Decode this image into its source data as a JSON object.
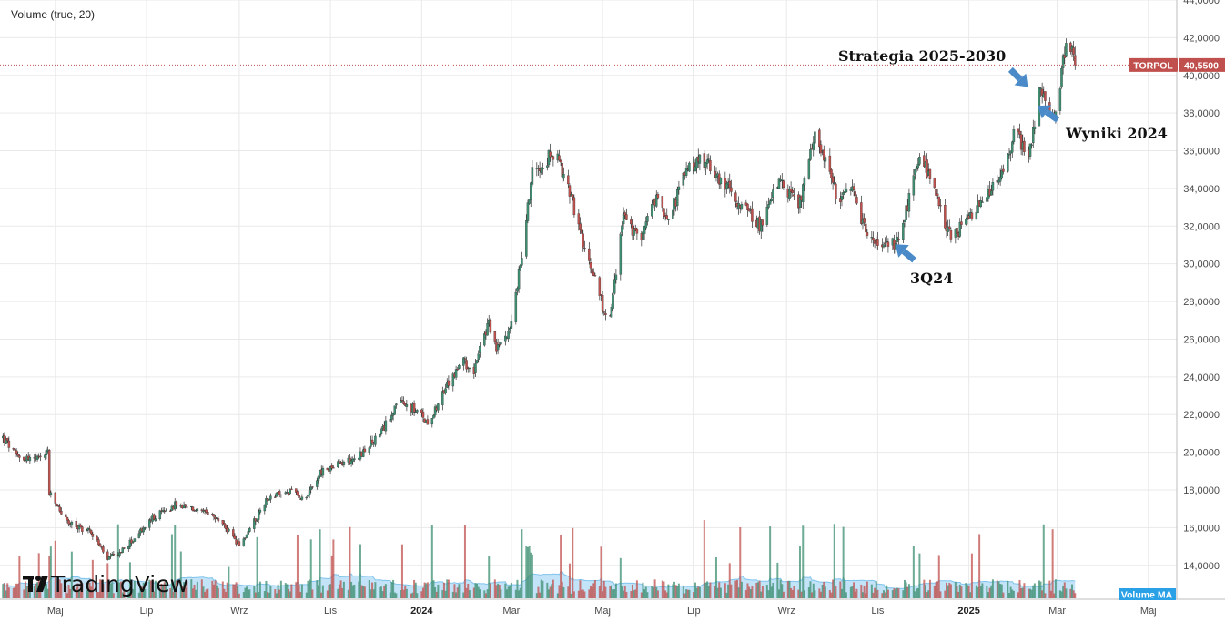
{
  "indicator": {
    "label": "Volume (true, 20)"
  },
  "logo": {
    "text": "TradingView"
  },
  "volume_badge": {
    "label": "Volume MA"
  },
  "colors": {
    "up": "#3e8f71",
    "down": "#c0504d",
    "wick": "#2b2b2b",
    "grid": "#e9e9e9",
    "price_line": "#c0504d",
    "volume_ma_fill": "#a9d8f5",
    "volume_ma_line": "#7fc3ec",
    "volume_badge": "#2aa0e6",
    "arrow": "#4a8ac9"
  },
  "chart_data": {
    "type": "candlestick",
    "symbol": "TORPOL",
    "last_price": 40.55,
    "last_price_label": "40,5500",
    "y_ticks": [
      "44,0000",
      "42,0000",
      "40,0000",
      "38,0000",
      "36,0000",
      "34,0000",
      "32,0000",
      "30,0000",
      "28,0000",
      "26,0000",
      "24,0000",
      "22,0000",
      "20,0000",
      "18,0000",
      "16,0000",
      "14,0000"
    ],
    "y_tick_values": [
      44,
      42,
      40,
      38,
      36,
      34,
      32,
      30,
      28,
      26,
      24,
      22,
      20,
      18,
      16,
      14
    ],
    "y_range": [
      12.2,
      44
    ],
    "x_range": [
      "2023-03-25",
      "2025-05-20"
    ],
    "x_ticks": [
      {
        "label": "Maj",
        "date": "2023-05-01",
        "bold": false
      },
      {
        "label": "Lip",
        "date": "2023-07-01",
        "bold": false
      },
      {
        "label": "Wrz",
        "date": "2023-09-01",
        "bold": false
      },
      {
        "label": "Lis",
        "date": "2023-11-01",
        "bold": false
      },
      {
        "label": "2024",
        "date": "2024-01-01",
        "bold": true
      },
      {
        "label": "Mar",
        "date": "2024-03-01",
        "bold": false
      },
      {
        "label": "Maj",
        "date": "2024-05-01",
        "bold": false
      },
      {
        "label": "Lip",
        "date": "2024-07-01",
        "bold": false
      },
      {
        "label": "Wrz",
        "date": "2024-09-01",
        "bold": false
      },
      {
        "label": "Lis",
        "date": "2024-11-01",
        "bold": false
      },
      {
        "label": "2025",
        "date": "2025-01-01",
        "bold": true
      },
      {
        "label": "Mar",
        "date": "2025-03-01",
        "bold": false
      },
      {
        "label": "Maj",
        "date": "2025-05-01",
        "bold": false
      }
    ],
    "price_path": [
      [
        "2023-03-25",
        21.0
      ],
      [
        "2023-04-05",
        19.8
      ],
      [
        "2023-04-20",
        19.6
      ],
      [
        "2023-04-26",
        20.1
      ],
      [
        "2023-04-27",
        17.8
      ],
      [
        "2023-05-10",
        16.2
      ],
      [
        "2023-05-25",
        15.8
      ],
      [
        "2023-06-05",
        14.3
      ],
      [
        "2023-06-15",
        14.8
      ],
      [
        "2023-06-25",
        15.6
      ],
      [
        "2023-07-05",
        16.5
      ],
      [
        "2023-07-20",
        17.2
      ],
      [
        "2023-08-05",
        16.9
      ],
      [
        "2023-08-20",
        16.3
      ],
      [
        "2023-09-01",
        15.0
      ],
      [
        "2023-09-10",
        16.2
      ],
      [
        "2023-09-20",
        17.6
      ],
      [
        "2023-10-05",
        17.9
      ],
      [
        "2023-10-15",
        17.6
      ],
      [
        "2023-10-25",
        18.9
      ],
      [
        "2023-11-05",
        19.3
      ],
      [
        "2023-11-20",
        19.8
      ],
      [
        "2023-12-05",
        21.0
      ],
      [
        "2023-12-15",
        22.6
      ],
      [
        "2023-12-25",
        22.4
      ],
      [
        "2024-01-05",
        21.6
      ],
      [
        "2024-01-20",
        23.8
      ],
      [
        "2024-01-28",
        24.8
      ],
      [
        "2024-02-05",
        24.4
      ],
      [
        "2024-02-15",
        26.9
      ],
      [
        "2024-02-20",
        25.4
      ],
      [
        "2024-03-01",
        26.8
      ],
      [
        "2024-03-08",
        30.5
      ],
      [
        "2024-03-15",
        35.0
      ],
      [
        "2024-03-30",
        35.9
      ],
      [
        "2024-04-10",
        33.6
      ],
      [
        "2024-04-20",
        30.3
      ],
      [
        "2024-04-25",
        29.6
      ],
      [
        "2024-05-05",
        26.6
      ],
      [
        "2024-05-15",
        32.6
      ],
      [
        "2024-05-25",
        31.2
      ],
      [
        "2024-06-05",
        33.4
      ],
      [
        "2024-06-15",
        32.5
      ],
      [
        "2024-06-25",
        34.8
      ],
      [
        "2024-07-05",
        35.6
      ],
      [
        "2024-07-15",
        34.9
      ],
      [
        "2024-08-01",
        33.2
      ],
      [
        "2024-08-15",
        32.0
      ],
      [
        "2024-08-25",
        34.5
      ],
      [
        "2024-09-10",
        33.2
      ],
      [
        "2024-09-20",
        36.8
      ],
      [
        "2024-09-28",
        35.5
      ],
      [
        "2024-10-05",
        33.3
      ],
      [
        "2024-10-15",
        33.8
      ],
      [
        "2024-10-25",
        31.5
      ],
      [
        "2024-11-05",
        30.8
      ],
      [
        "2024-11-15",
        31.2
      ],
      [
        "2024-11-22",
        33.5
      ],
      [
        "2024-11-30",
        35.8
      ],
      [
        "2024-12-10",
        33.5
      ],
      [
        "2024-12-20",
        31.3
      ],
      [
        "2025-01-05",
        32.8
      ],
      [
        "2025-01-15",
        33.8
      ],
      [
        "2025-01-25",
        35.0
      ],
      [
        "2025-02-01",
        37.2
      ],
      [
        "2025-02-10",
        35.5
      ],
      [
        "2025-02-17",
        39.2
      ],
      [
        "2025-02-25",
        38.2
      ],
      [
        "2025-03-01",
        38.4
      ],
      [
        "2025-03-06",
        41.2
      ],
      [
        "2025-03-10",
        41.6
      ],
      [
        "2025-03-13",
        40.55
      ]
    ],
    "volume_range": [
      0,
      46
    ],
    "annotations": [
      {
        "text": "Strategia 2025-2030",
        "date": "2025-02-27",
        "price": 39.0
      },
      {
        "text": "Wyniki 2024",
        "date": "2025-03-04",
        "price": 38.5
      },
      {
        "text": "3Q24",
        "date": "2024-11-12",
        "price": 31.0
      }
    ]
  }
}
